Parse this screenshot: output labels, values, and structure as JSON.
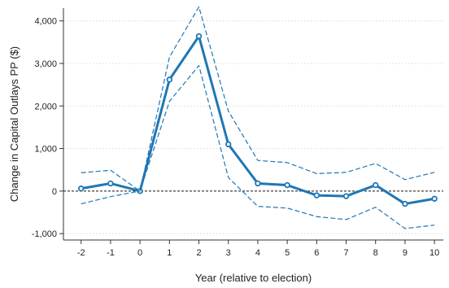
{
  "chart_data": {
    "type": "line",
    "title": "",
    "xlabel": "Year (relative to election)",
    "ylabel": "Change in Capital Outlays PP ($)",
    "x": [
      -2,
      -1,
      0,
      1,
      2,
      3,
      4,
      5,
      6,
      7,
      8,
      9,
      10
    ],
    "xlim": [
      -2.6,
      10.3
    ],
    "ylim": [
      -1150,
      4300
    ],
    "yticks": [
      -1000,
      0,
      1000,
      2000,
      3000,
      4000
    ],
    "ytick_labels": [
      "-1,000",
      "0",
      "1,000",
      "2,000",
      "3,000",
      "4,000"
    ],
    "xtick_labels": [
      "-2",
      "-1",
      "0",
      "1",
      "2",
      "3",
      "4",
      "5",
      "6",
      "7",
      "8",
      "9",
      "10"
    ],
    "grid": true,
    "reference_line_y": 0,
    "series": [
      {
        "role": "estimate",
        "values": [
          60,
          180,
          0,
          2620,
          3640,
          1100,
          180,
          140,
          -100,
          -120,
          140,
          -300,
          -180
        ],
        "color": "#1f77b4",
        "style": "solid-with-markers"
      },
      {
        "role": "upper_ci",
        "values": [
          430,
          490,
          0,
          3150,
          4330,
          1880,
          720,
          670,
          410,
          440,
          650,
          270,
          440
        ],
        "color": "#1f77b4",
        "style": "dashed"
      },
      {
        "role": "lower_ci",
        "values": [
          -300,
          -130,
          0,
          2110,
          2950,
          320,
          -360,
          -400,
          -600,
          -670,
          -380,
          -880,
          -800
        ],
        "color": "#1f77b4",
        "style": "dashed"
      }
    ]
  }
}
